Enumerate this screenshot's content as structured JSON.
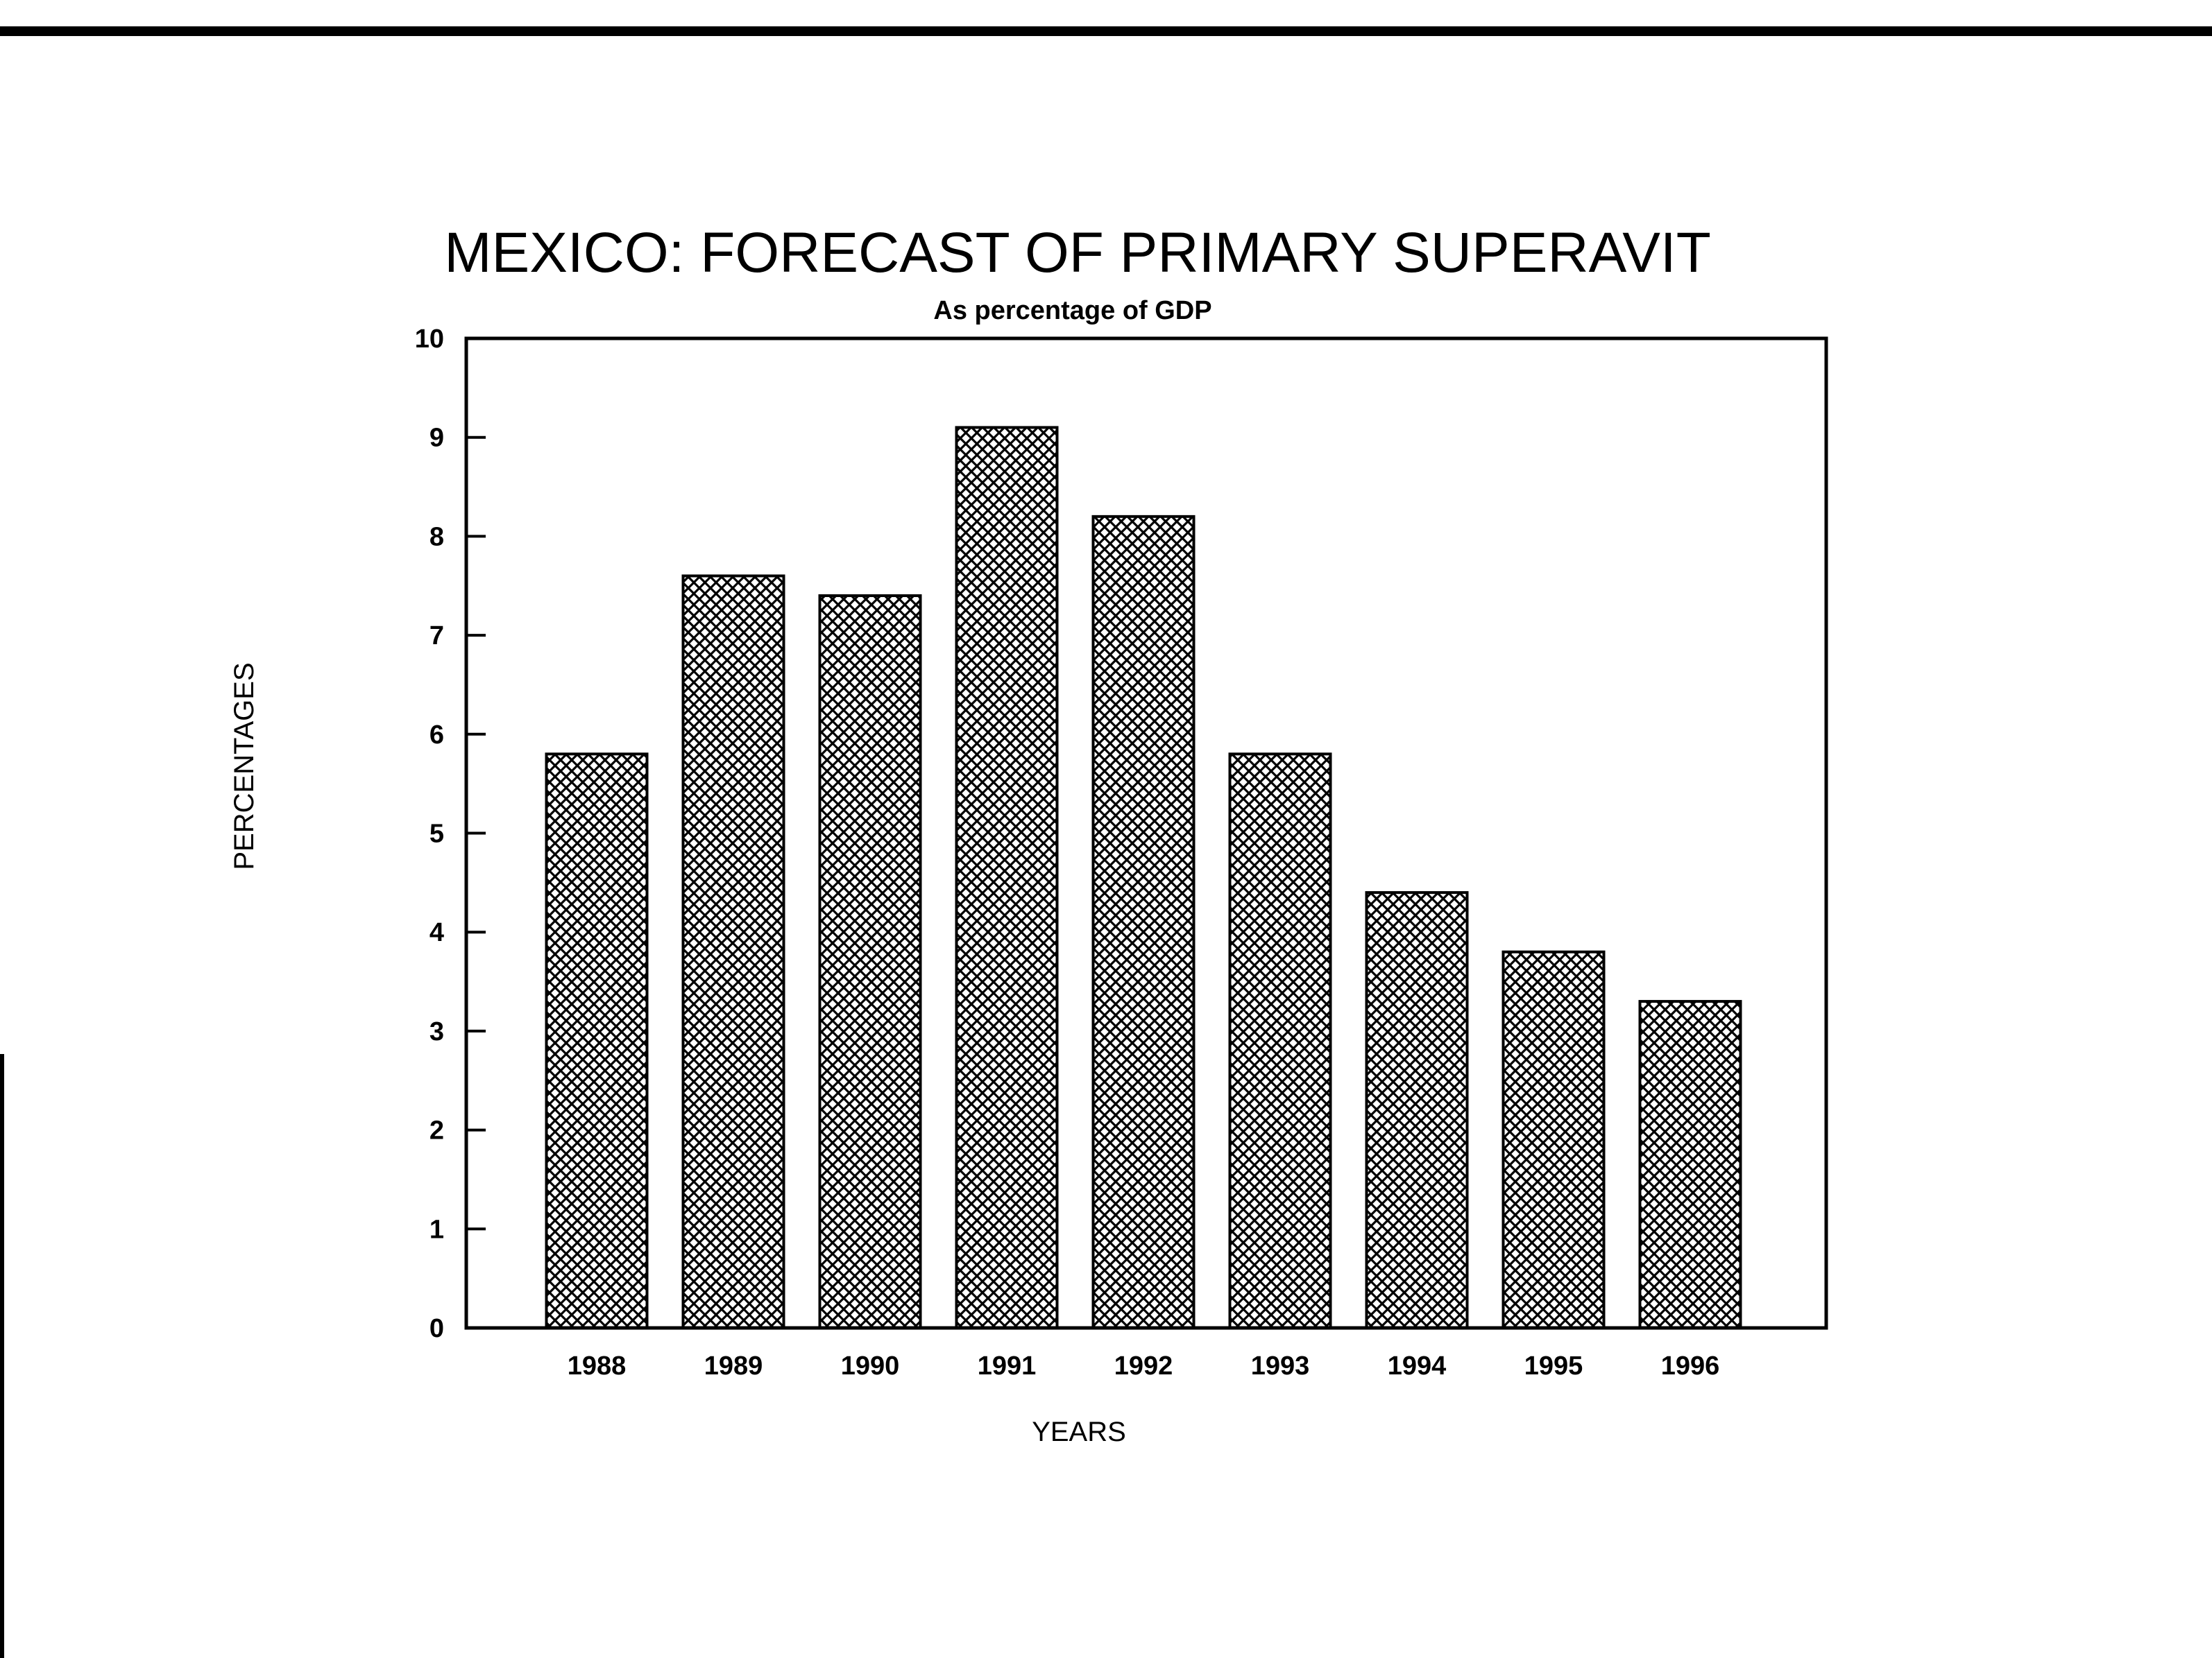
{
  "chart_data": {
    "type": "bar",
    "title": "MEXICO: FORECAST OF PRIMARY SUPERAVIT",
    "subtitle": "As percentage of GDP",
    "xlabel": "YEARS",
    "ylabel": "PERCENTAGES",
    "categories": [
      "1988",
      "1989",
      "1990",
      "1991",
      "1992",
      "1993",
      "1994",
      "1995",
      "1996"
    ],
    "values": [
      5.8,
      7.6,
      7.4,
      9.1,
      8.2,
      5.8,
      4.4,
      3.8,
      3.3
    ],
    "ylim": [
      0,
      10
    ],
    "yticks": [
      0,
      1,
      2,
      3,
      4,
      5,
      6,
      7,
      8,
      9,
      10
    ],
    "grid": false,
    "legend": "none",
    "bar_fill": "crosshatch",
    "colors": {
      "ink": "#000000",
      "background": "#ffffff"
    }
  }
}
